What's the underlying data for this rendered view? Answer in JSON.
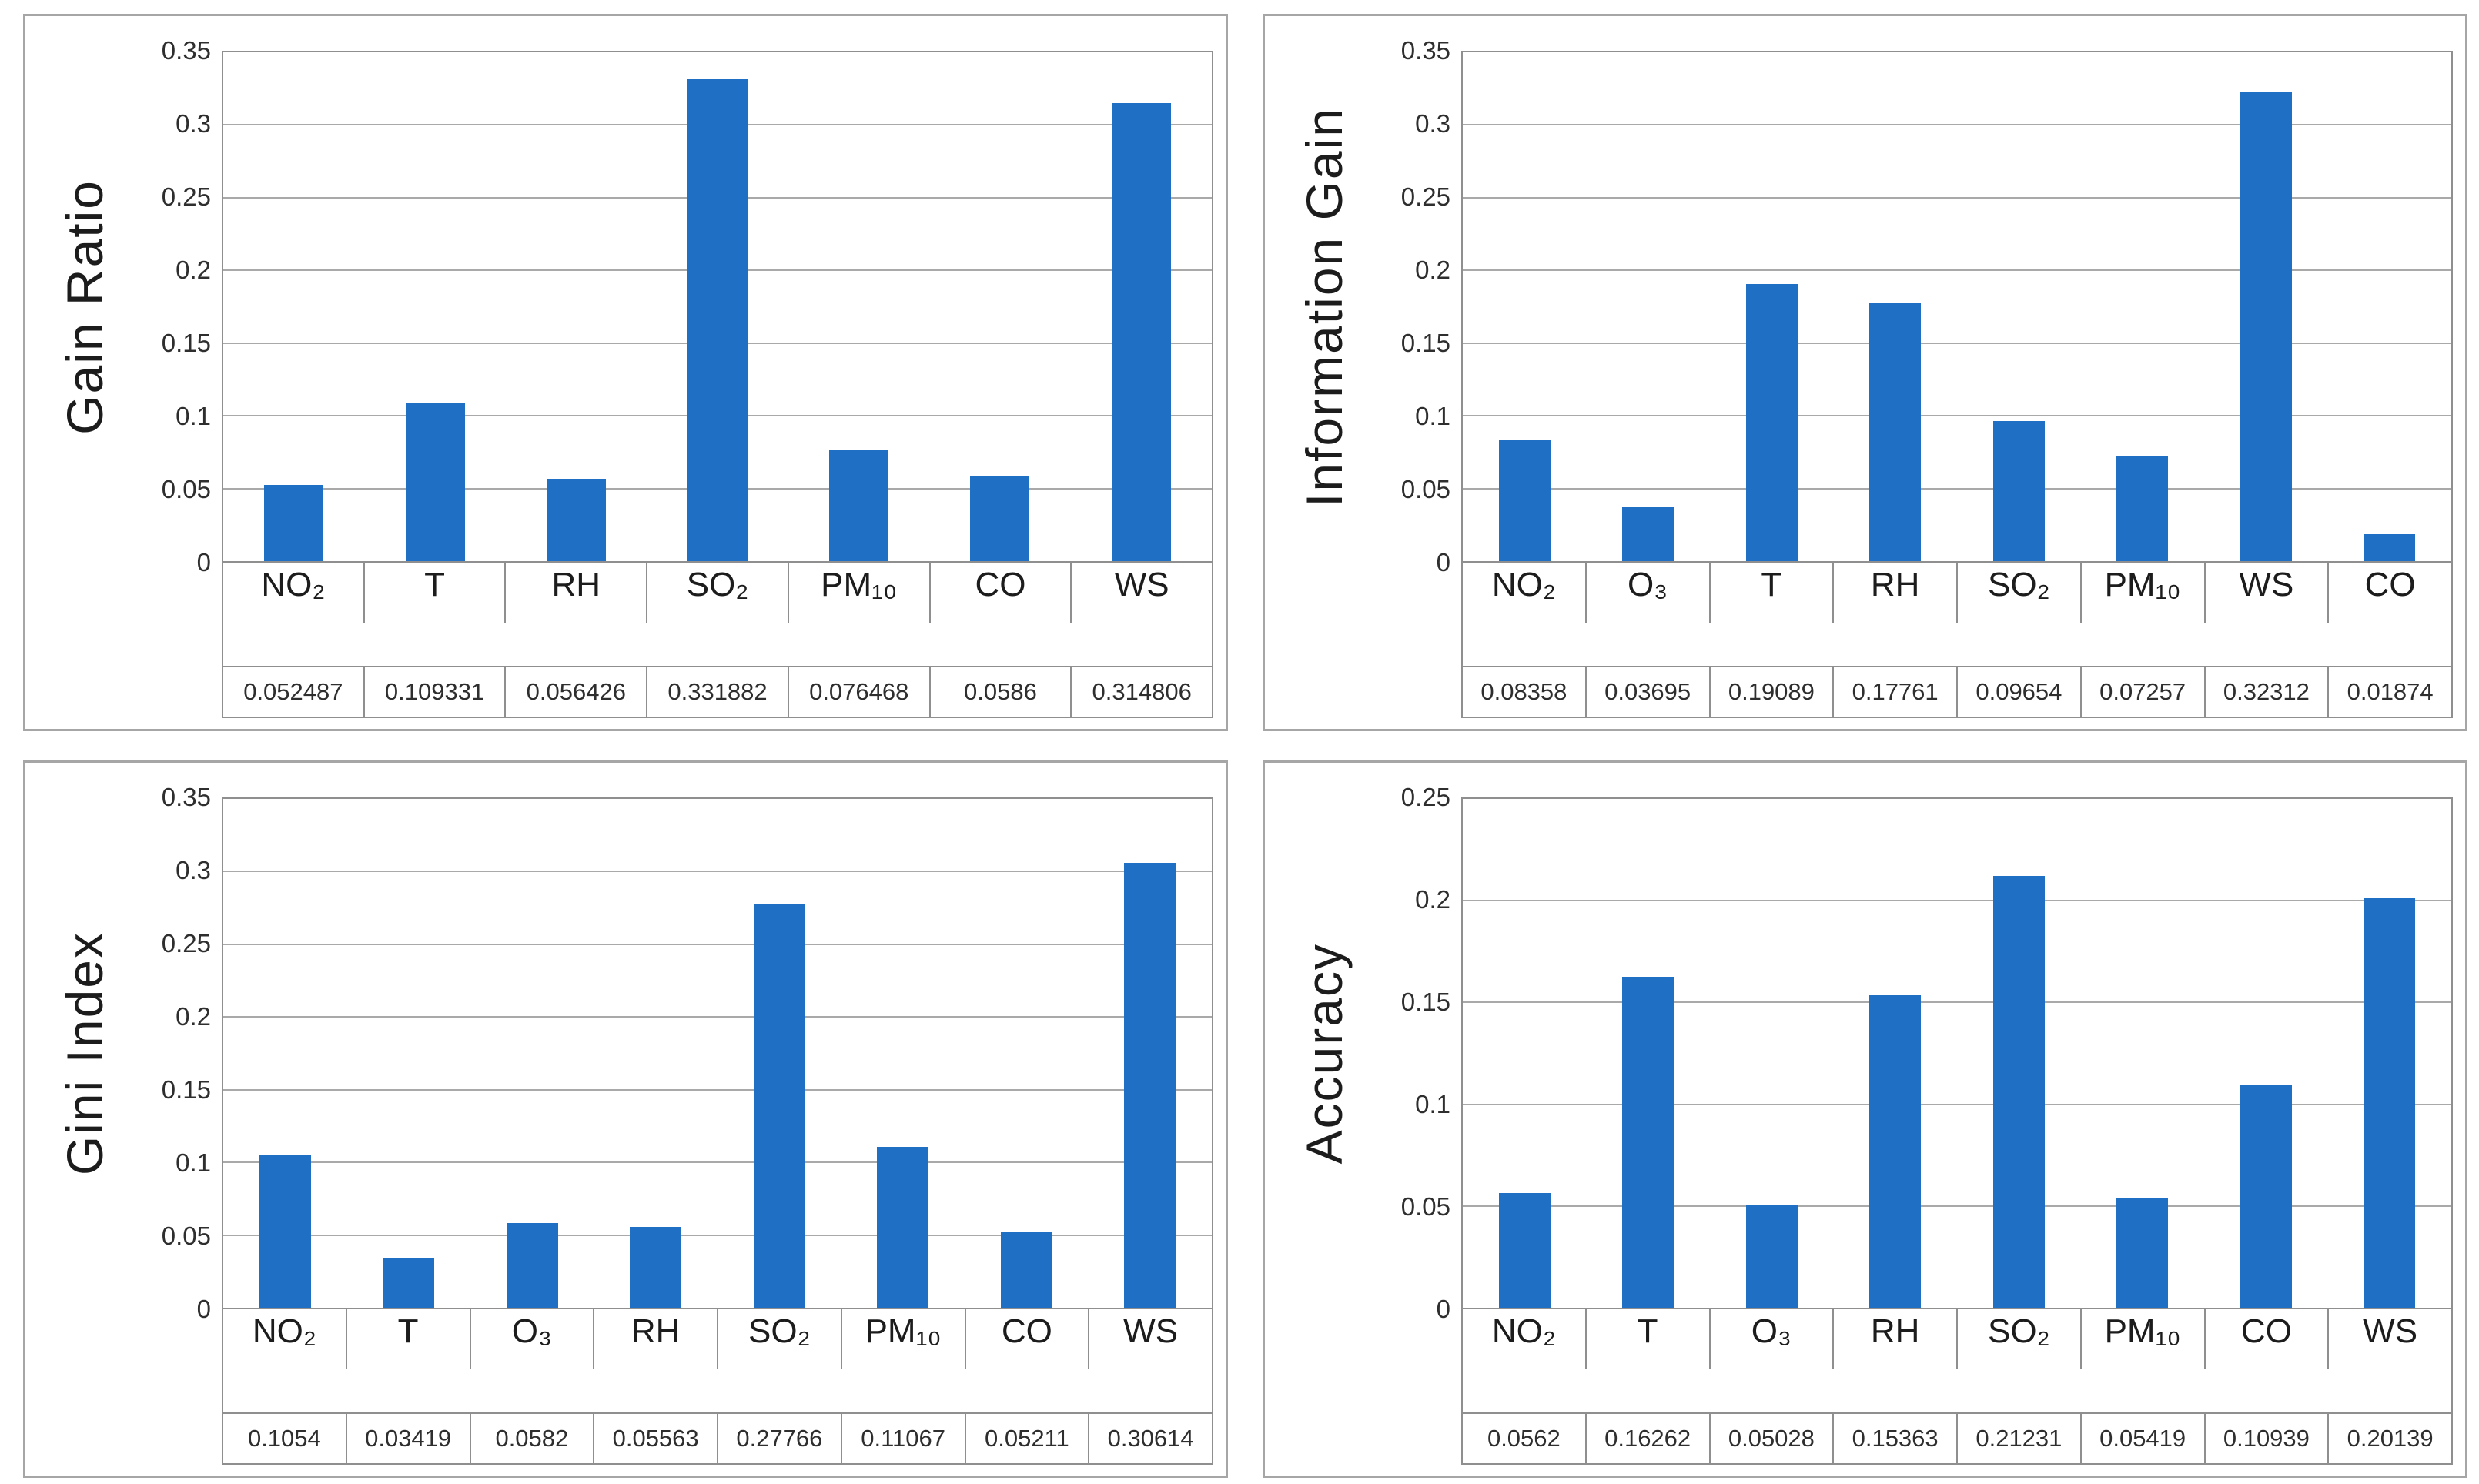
{
  "style": {
    "bar_color": "#1F6FC5",
    "grid_color": "#A9A9A9",
    "axis_color": "#8F8F8F",
    "panel_border": "#A6A6A6",
    "text_color": "#1C1C1C",
    "tick_color": "#2E2E2E"
  },
  "chart_data": [
    {
      "id": "gain-ratio",
      "type": "bar",
      "title": "",
      "xlabel": "",
      "ylabel": "Gain Ratio",
      "categories": [
        "NO₂",
        "T",
        "RH",
        "SO₂",
        "PM₁₀",
        "CO",
        "WS"
      ],
      "values": [
        0.052487,
        0.109331,
        0.056426,
        0.331882,
        0.076468,
        0.0586,
        0.314806
      ],
      "value_labels": [
        "0.052487",
        "0.109331",
        "0.056426",
        "0.331882",
        "0.076468",
        "0.0586",
        "0.314806"
      ],
      "ylim": [
        0,
        0.35
      ],
      "ytick_step": 0.05,
      "yticks": [
        "0.35",
        "0.3",
        "0.25",
        "0.2",
        "0.15",
        "0.1",
        "0.05",
        "0"
      ],
      "grid": true,
      "legend": "none",
      "data_table_shown": true
    },
    {
      "id": "information-gain",
      "type": "bar",
      "title": "",
      "xlabel": "",
      "ylabel": "Information Gain",
      "categories": [
        "NO₂",
        "O₃",
        "T",
        "RH",
        "SO₂",
        "PM₁₀",
        "WS",
        "CO"
      ],
      "values": [
        0.08358,
        0.03695,
        0.19089,
        0.17761,
        0.09654,
        0.07257,
        0.32312,
        0.01874
      ],
      "value_labels": [
        "0.08358",
        "0.03695",
        "0.19089",
        "0.17761",
        "0.09654",
        "0.07257",
        "0.32312",
        "0.01874"
      ],
      "ylim": [
        0,
        0.35
      ],
      "ytick_step": 0.05,
      "yticks": [
        "0.35",
        "0.3",
        "0.25",
        "0.2",
        "0.15",
        "0.1",
        "0.05",
        "0"
      ],
      "grid": true,
      "legend": "none",
      "data_table_shown": true
    },
    {
      "id": "gini-index",
      "type": "bar",
      "title": "",
      "xlabel": "",
      "ylabel": "Gini Index",
      "categories": [
        "NO₂",
        "T",
        "O₃",
        "RH",
        "SO₂",
        "PM₁₀",
        "CO",
        "WS"
      ],
      "values": [
        0.1054,
        0.03419,
        0.0582,
        0.05563,
        0.27766,
        0.11067,
        0.05211,
        0.30614
      ],
      "value_labels": [
        "0.1054",
        "0.03419",
        "0.0582",
        "0.05563",
        "0.27766",
        "0.11067",
        "0.05211",
        "0.30614"
      ],
      "ylim": [
        0,
        0.35
      ],
      "ytick_step": 0.05,
      "yticks": [
        "0.35",
        "0.3",
        "0.25",
        "0.2",
        "0.15",
        "0.1",
        "0.05",
        "0"
      ],
      "grid": true,
      "legend": "none",
      "data_table_shown": true
    },
    {
      "id": "accuracy",
      "type": "bar",
      "title": "",
      "xlabel": "",
      "ylabel": "Accuracy",
      "categories": [
        "NO₂",
        "T",
        "O₃",
        "RH",
        "SO₂",
        "PM₁₀",
        "CO",
        "WS"
      ],
      "values": [
        0.0562,
        0.16262,
        0.05028,
        0.15363,
        0.21231,
        0.05419,
        0.10939,
        0.20139
      ],
      "value_labels": [
        "0.0562",
        "0.16262",
        "0.05028",
        "0.15363",
        "0.21231",
        "0.05419",
        "0.10939",
        "0.20139"
      ],
      "ylim": [
        0,
        0.25
      ],
      "ytick_step": 0.05,
      "yticks": [
        "0.25",
        "0.2",
        "0.15",
        "0.1",
        "0.05",
        "0"
      ],
      "grid": true,
      "legend": "none",
      "data_table_shown": true
    }
  ]
}
